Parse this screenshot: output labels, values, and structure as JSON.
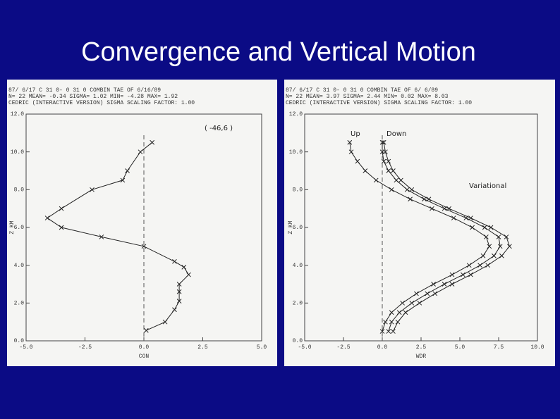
{
  "title": "Convergence and Vertical Motion",
  "chart_data": [
    {
      "type": "line",
      "header_lines": [
        "87/ 6/17   C 31  0- 0 31  0     COMBIN          TAE OF  6/16/89",
        "N=   22   MEAN= -0.34   SIGMA=  1.02   MIN=  -4.28   MAX=   1.92",
        "CEDRIC  (INTERACTIVE VERSION)          SIGMA SCALING FACTOR:  1.00"
      ],
      "xlabel": "CON",
      "ylabel": "Z KM",
      "annotations": [
        "( -46,6 )"
      ],
      "xlim": [
        -5,
        5
      ],
      "ylim": [
        0,
        12
      ],
      "xticks": [
        {
          "value": -5,
          "label": "-5.0"
        },
        {
          "value": -2.5,
          "label": "-2.5"
        },
        {
          "value": 0,
          "label": "0.0"
        },
        {
          "value": 2.5,
          "label": "2.5"
        },
        {
          "value": 5,
          "label": "5.0"
        }
      ],
      "yticks": [
        {
          "value": 0,
          "label": "0.0"
        },
        {
          "value": 2,
          "label": "2.0"
        },
        {
          "value": 4,
          "label": "4.0"
        },
        {
          "value": 6,
          "label": "6.0"
        },
        {
          "value": 8,
          "label": "8.0"
        },
        {
          "value": 10,
          "label": "10.0"
        },
        {
          "value": 12,
          "label": "12.0"
        }
      ],
      "series": [
        {
          "color": "#222222",
          "x": [
            0.1,
            0.9,
            1.3,
            1.5,
            1.5,
            1.5,
            1.9,
            1.7,
            1.3,
            0.0,
            -1.8,
            -3.5,
            -4.1,
            -3.5,
            -2.2,
            -0.9,
            -0.7,
            -0.15,
            0.35
          ],
          "values": [
            0.55,
            1.0,
            1.65,
            2.1,
            2.6,
            3.0,
            3.5,
            3.9,
            4.2,
            5.0,
            5.5,
            6.0,
            6.5,
            7.0,
            8.0,
            8.5,
            9.0,
            10.0,
            10.5
          ]
        }
      ]
    },
    {
      "type": "line",
      "header_lines": [
        "87/ 6/17   C 31  0- 0 31  0     COMBIN          TAE OF  6/ 6/89",
        "N=   22   MEAN=  3.97   SIGMA=  2.44   MIN=  0.02   MAX=   8.03",
        "CEDRIC  (INTERACTIVE VERSION)          SIGMA SCALING FACTOR:  1.00"
      ],
      "xlabel": "WDR",
      "ylabel": "Z KM",
      "annotations": [
        "Up",
        "Down",
        "Variational"
      ],
      "xlim": [
        -5,
        10
      ],
      "ylim": [
        0,
        12
      ],
      "xticks": [
        {
          "value": -5,
          "label": "-5.0"
        },
        {
          "value": -2.5,
          "label": "-2.5"
        },
        {
          "value": 0,
          "label": "0.0"
        },
        {
          "value": 2.5,
          "label": "2.5"
        },
        {
          "value": 5,
          "label": "5.0"
        },
        {
          "value": 7.5,
          "label": "7.5"
        },
        {
          "value": 10,
          "label": "10.0"
        }
      ],
      "yticks": [
        {
          "value": 0,
          "label": "0.0"
        },
        {
          "value": 2,
          "label": "2.0"
        },
        {
          "value": 4,
          "label": "4.0"
        },
        {
          "value": 6,
          "label": "6.0"
        },
        {
          "value": 8,
          "label": "8.0"
        },
        {
          "value": 10,
          "label": "10.0"
        },
        {
          "value": 12,
          "label": "12.0"
        }
      ],
      "series": [
        {
          "color": "#222222",
          "x": [
            0.0,
            0.2,
            0.6,
            1.3,
            2.2,
            3.3,
            4.5,
            5.6,
            6.5,
            6.9,
            6.7,
            5.8,
            4.6,
            3.2,
            1.8,
            0.6,
            -0.4,
            -1.1,
            -1.6,
            -2.0,
            -2.1
          ],
          "values": [
            0.5,
            1,
            1.5,
            2,
            2.5,
            3,
            3.5,
            4,
            4.5,
            5,
            5.5,
            6,
            6.5,
            7,
            7.5,
            8,
            8.5,
            9,
            9.5,
            10,
            10.5
          ]
        },
        {
          "color": "#222222",
          "x": [
            0.4,
            0.6,
            1.1,
            1.9,
            2.9,
            4.0,
            5.2,
            6.3,
            7.2,
            7.6,
            7.5,
            6.6,
            5.4,
            4.0,
            2.7,
            1.6,
            0.9,
            0.4,
            0.1,
            0.0,
            0.0
          ],
          "values": [
            0.5,
            1,
            1.5,
            2,
            2.5,
            3,
            3.5,
            4,
            4.5,
            5,
            5.5,
            6,
            6.5,
            7,
            7.5,
            8,
            8.5,
            9,
            9.5,
            10,
            10.5
          ]
        },
        {
          "color": "#222222",
          "x": [
            0.7,
            1.0,
            1.5,
            2.4,
            3.4,
            4.5,
            5.7,
            6.8,
            7.7,
            8.2,
            8.0,
            7.0,
            5.7,
            4.3,
            3.0,
            1.9,
            1.2,
            0.7,
            0.4,
            0.2,
            0.1
          ],
          "values": [
            0.5,
            1,
            1.5,
            2,
            2.5,
            3,
            3.5,
            4,
            4.5,
            5,
            5.5,
            6,
            6.5,
            7,
            7.5,
            8,
            8.5,
            9,
            9.5,
            10,
            10.5
          ]
        }
      ]
    }
  ]
}
